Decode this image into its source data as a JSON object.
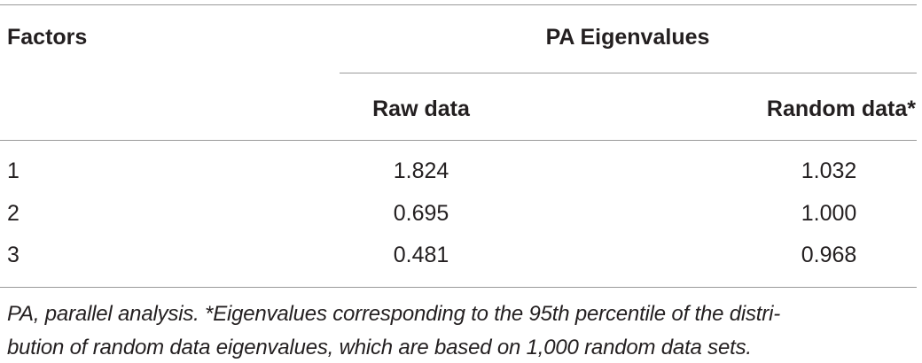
{
  "table": {
    "header": {
      "factors": "Factors",
      "group": "PA Eigenvalues",
      "raw": "Raw data",
      "random": "Random data*"
    },
    "rows": [
      [
        "1",
        "1.824",
        "1.032"
      ],
      [
        "2",
        "0.695",
        "1.000"
      ],
      [
        "3",
        "0.481",
        "0.968"
      ]
    ],
    "footnote": [
      "PA, parallel analysis. *Eigenvalues corresponding to the 95th percentile of the distri-",
      "bution of random data eigenvalues, which are based on 1,000 random data sets."
    ]
  }
}
